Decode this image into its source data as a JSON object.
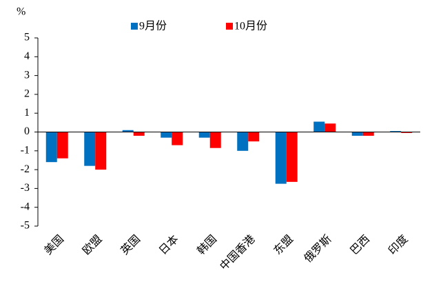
{
  "chart_data": {
    "type": "bar",
    "y_label": "%",
    "categories": [
      "美国",
      "欧盟",
      "英国",
      "日本",
      "韩国",
      "中国香港",
      "东盟",
      "俄罗斯",
      "巴西",
      "印度"
    ],
    "series": [
      {
        "name": "9月份",
        "color": "#0070c0",
        "values": [
          -1.6,
          -1.8,
          0.1,
          -0.3,
          -0.3,
          -1.0,
          -2.75,
          0.55,
          -0.2,
          0.05
        ]
      },
      {
        "name": "10月份",
        "color": "#ff0000",
        "values": [
          -1.4,
          -2.0,
          -0.2,
          -0.7,
          -0.85,
          -0.5,
          -2.65,
          0.45,
          -0.2,
          -0.05
        ]
      }
    ],
    "ylim": [
      -5,
      5
    ],
    "yticks": [
      -5,
      -4,
      -3,
      -2,
      -1,
      0,
      1,
      2,
      3,
      4,
      5
    ],
    "legend": "top"
  }
}
